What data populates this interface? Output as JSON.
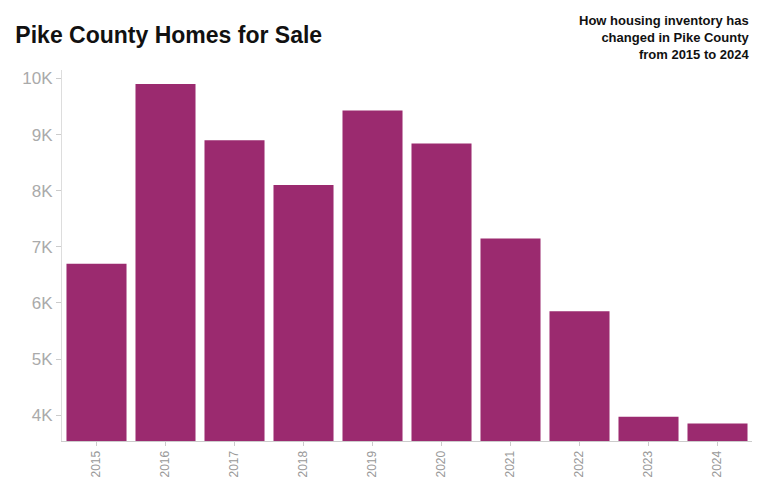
{
  "chart_data": {
    "type": "bar",
    "title": "Pike County Homes for Sale",
    "subtitle": "How housing inventory has\nchanged in Pike County\nfrom 2015 to 2024",
    "categories": [
      "2015",
      "2016",
      "2017",
      "2018",
      "2019",
      "2020",
      "2021",
      "2022",
      "2023",
      "2024"
    ],
    "values": [
      6700,
      9900,
      8900,
      8100,
      9430,
      8840,
      7150,
      5850,
      3970,
      3850
    ],
    "color": "#9b2a6f",
    "ylim": [
      3540,
      10150
    ],
    "yticks": [
      {
        "value": 4000,
        "label": "4K"
      },
      {
        "value": 5000,
        "label": "5K"
      },
      {
        "value": 6000,
        "label": "6K"
      },
      {
        "value": 7000,
        "label": "7K"
      },
      {
        "value": 8000,
        "label": "8K"
      },
      {
        "value": 9000,
        "label": "9K"
      },
      {
        "value": 10000,
        "label": "10K"
      }
    ],
    "grid": false
  }
}
